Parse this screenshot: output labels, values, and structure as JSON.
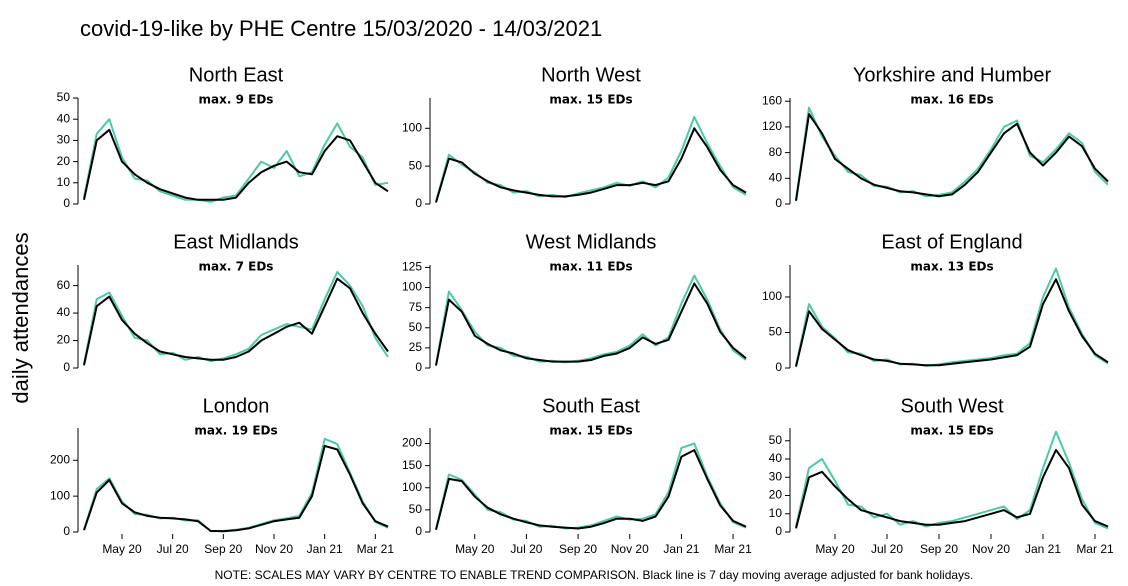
{
  "title": "covid-19-like by PHE Centre 15/03/2020 - 14/03/2021",
  "y_label": "daily attendances",
  "note": "NOTE: SCALES MAY VARY BY CENTRE TO ENABLE TREND COMPARISON. Black line is 7 day moving average adjusted for bank holidays.",
  "chart_data": [
    {
      "type": "line",
      "title": "North East",
      "subtitle": "max. 9 EDs",
      "categories": [
        null,
        null,
        null,
        null,
        null,
        null,
        null,
        null,
        null,
        null,
        null,
        null,
        null,
        null,
        null,
        null,
        null,
        null,
        null,
        null,
        null,
        null,
        null,
        null,
        null
      ],
      "ylim": [
        0,
        50
      ],
      "yticks": [
        0,
        10,
        20,
        30,
        40,
        50
      ],
      "series": [
        {
          "color": "#4cc9a7",
          "values": [
            3,
            33,
            40,
            22,
            12,
            11,
            6,
            4,
            2,
            2,
            1,
            3,
            4,
            12,
            20,
            17,
            25,
            13,
            15,
            28,
            38,
            27,
            22,
            9,
            10
          ]
        },
        {
          "color": "#000000",
          "values": [
            2,
            30,
            35,
            20,
            14,
            10,
            7,
            5,
            3,
            2,
            2,
            2,
            3,
            10,
            15,
            18,
            20,
            15,
            14,
            25,
            32,
            30,
            20,
            10,
            6
          ]
        }
      ]
    },
    {
      "type": "line",
      "title": "North West",
      "subtitle": "max. 15 EDs",
      "categories": [
        null,
        null,
        null,
        null,
        null,
        null,
        null,
        null,
        null,
        null,
        null,
        null,
        null,
        null,
        null,
        null,
        null,
        null,
        null,
        null,
        null,
        null,
        null,
        null,
        null
      ],
      "ylim": [
        0,
        140
      ],
      "yticks": [
        0,
        50,
        100
      ],
      "series": [
        {
          "color": "#4cc9a7",
          "values": [
            3,
            65,
            52,
            42,
            28,
            25,
            15,
            17,
            10,
            12,
            9,
            14,
            18,
            22,
            28,
            24,
            30,
            22,
            35,
            70,
            115,
            80,
            50,
            22,
            12
          ]
        },
        {
          "color": "#000000",
          "values": [
            2,
            60,
            55,
            40,
            30,
            22,
            18,
            15,
            12,
            10,
            10,
            12,
            15,
            20,
            25,
            25,
            28,
            25,
            30,
            60,
            100,
            75,
            45,
            25,
            15
          ]
        }
      ]
    },
    {
      "type": "line",
      "title": "Yorkshire and Humber",
      "subtitle": "max. 16 EDs",
      "categories": [
        null,
        null,
        null,
        null,
        null,
        null,
        null,
        null,
        null,
        null,
        null,
        null,
        null,
        null,
        null,
        null,
        null,
        null,
        null,
        null,
        null,
        null,
        null,
        null,
        null
      ],
      "ylim": [
        0,
        165
      ],
      "yticks": [
        0,
        40,
        80,
        120,
        160
      ],
      "series": [
        {
          "color": "#4cc9a7",
          "values": [
            6,
            150,
            105,
            75,
            50,
            45,
            28,
            27,
            18,
            20,
            12,
            14,
            18,
            35,
            55,
            85,
            120,
            130,
            75,
            65,
            85,
            110,
            95,
            50,
            30
          ]
        },
        {
          "color": "#000000",
          "values": [
            5,
            140,
            110,
            70,
            55,
            40,
            30,
            25,
            20,
            18,
            15,
            12,
            15,
            30,
            50,
            80,
            110,
            125,
            80,
            60,
            80,
            105,
            90,
            55,
            35
          ]
        }
      ]
    },
    {
      "type": "line",
      "title": "East Midlands",
      "subtitle": "max. 7 EDs",
      "categories": [
        null,
        null,
        null,
        null,
        null,
        null,
        null,
        null,
        null,
        null,
        null,
        null,
        null,
        null,
        null,
        null,
        null,
        null,
        null,
        null,
        null,
        null,
        null,
        null,
        null
      ],
      "ylim": [
        0,
        75
      ],
      "yticks": [
        0,
        20,
        40,
        60
      ],
      "series": [
        {
          "color": "#4cc9a7",
          "values": [
            3,
            50,
            55,
            38,
            22,
            20,
            10,
            11,
            6,
            8,
            5,
            7,
            10,
            14,
            24,
            28,
            32,
            30,
            28,
            50,
            70,
            60,
            45,
            22,
            8
          ]
        },
        {
          "color": "#000000",
          "values": [
            2,
            45,
            52,
            35,
            25,
            18,
            12,
            10,
            8,
            7,
            6,
            6,
            8,
            12,
            20,
            25,
            30,
            33,
            25,
            45,
            65,
            58,
            40,
            25,
            12
          ]
        }
      ]
    },
    {
      "type": "line",
      "title": "West Midlands",
      "subtitle": "max. 11 EDs",
      "categories": [
        null,
        null,
        null,
        null,
        null,
        null,
        null,
        null,
        null,
        null,
        null,
        null,
        null,
        null,
        null,
        null,
        null,
        null,
        null,
        null,
        null,
        null,
        null,
        null,
        null
      ],
      "ylim": [
        0,
        128
      ],
      "yticks": [
        0,
        25,
        50,
        75,
        100,
        125
      ],
      "series": [
        {
          "color": "#4cc9a7",
          "values": [
            4,
            95,
            72,
            45,
            28,
            25,
            15,
            14,
            8,
            9,
            7,
            9,
            12,
            17,
            20,
            28,
            42,
            28,
            38,
            80,
            115,
            85,
            48,
            22,
            10
          ]
        },
        {
          "color": "#000000",
          "values": [
            3,
            85,
            70,
            40,
            30,
            22,
            18,
            12,
            10,
            8,
            8,
            8,
            10,
            15,
            18,
            25,
            38,
            30,
            35,
            70,
            105,
            80,
            45,
            25,
            12
          ]
        }
      ]
    },
    {
      "type": "line",
      "title": "East of England",
      "subtitle": "max. 13 EDs",
      "categories": [
        null,
        null,
        null,
        null,
        null,
        null,
        null,
        null,
        null,
        null,
        null,
        null,
        null,
        null,
        null,
        null,
        null,
        null,
        null,
        null,
        null,
        null,
        null,
        null,
        null
      ],
      "ylim": [
        0,
        145
      ],
      "yticks": [
        0,
        50,
        100
      ],
      "series": [
        {
          "color": "#4cc9a7",
          "values": [
            3,
            90,
            58,
            42,
            22,
            20,
            10,
            12,
            5,
            6,
            3,
            5,
            8,
            10,
            12,
            14,
            18,
            20,
            35,
            100,
            140,
            85,
            48,
            18,
            6
          ]
        },
        {
          "color": "#000000",
          "values": [
            2,
            80,
            55,
            40,
            25,
            18,
            12,
            10,
            6,
            5,
            4,
            4,
            6,
            8,
            10,
            12,
            15,
            18,
            30,
            90,
            125,
            80,
            45,
            20,
            8
          ]
        }
      ]
    },
    {
      "type": "line",
      "title": "London",
      "subtitle": "max. 19 EDs",
      "categories": [
        null,
        null,
        null,
        "May 20",
        null,
        null,
        null,
        "Jul 20",
        null,
        null,
        null,
        "Sep 20",
        null,
        null,
        null,
        "Nov 20",
        null,
        null,
        null,
        "Jan 21",
        null,
        null,
        null,
        "Mar 21",
        null
      ],
      "ylim": [
        0,
        290
      ],
      "yticks": [
        0,
        100,
        200
      ],
      "series": [
        {
          "color": "#4cc9a7",
          "values": [
            6,
            120,
            150,
            85,
            50,
            48,
            38,
            40,
            32,
            33,
            2,
            3,
            6,
            12,
            22,
            33,
            38,
            45,
            110,
            260,
            245,
            165,
            85,
            28,
            12
          ]
        },
        {
          "color": "#000000",
          "values": [
            5,
            110,
            145,
            80,
            55,
            45,
            40,
            38,
            35,
            30,
            3,
            2,
            5,
            10,
            20,
            30,
            35,
            40,
            100,
            240,
            230,
            160,
            80,
            30,
            15
          ]
        }
      ]
    },
    {
      "type": "line",
      "title": "South East",
      "subtitle": "max. 15 EDs",
      "categories": [
        null,
        null,
        null,
        "May 20",
        null,
        null,
        null,
        "Jul 20",
        null,
        null,
        null,
        "Sep 20",
        null,
        null,
        null,
        "Nov 20",
        null,
        null,
        null,
        "Jan 21",
        null,
        null,
        null,
        "Mar 21",
        null
      ],
      "ylim": [
        0,
        235
      ],
      "yticks": [
        0,
        50,
        100,
        150,
        200
      ],
      "series": [
        {
          "color": "#4cc9a7",
          "values": [
            6,
            130,
            118,
            85,
            50,
            45,
            28,
            25,
            12,
            14,
            8,
            10,
            15,
            25,
            35,
            28,
            30,
            40,
            90,
            190,
            200,
            125,
            65,
            22,
            10
          ]
        },
        {
          "color": "#000000",
          "values": [
            5,
            120,
            115,
            80,
            55,
            40,
            30,
            22,
            15,
            12,
            10,
            8,
            12,
            20,
            30,
            30,
            25,
            35,
            80,
            170,
            185,
            120,
            60,
            25,
            12
          ]
        }
      ]
    },
    {
      "type": "line",
      "title": "South West",
      "subtitle": "max. 15 EDs",
      "categories": [
        null,
        null,
        null,
        "May 20",
        null,
        null,
        null,
        "Jul 20",
        null,
        null,
        null,
        "Sep 20",
        null,
        null,
        null,
        "Nov 20",
        null,
        null,
        null,
        "Jan 21",
        null,
        null,
        null,
        "Mar 21",
        null
      ],
      "ylim": [
        0,
        57
      ],
      "yticks": [
        0,
        10,
        20,
        30,
        40,
        50
      ],
      "series": [
        {
          "color": "#4cc9a7",
          "values": [
            3,
            35,
            40,
            28,
            15,
            14,
            8,
            10,
            4,
            6,
            3,
            5,
            6,
            8,
            10,
            12,
            14,
            7,
            12,
            35,
            55,
            38,
            18,
            5,
            2
          ]
        },
        {
          "color": "#000000",
          "values": [
            2,
            30,
            33,
            25,
            18,
            12,
            10,
            8,
            6,
            5,
            4,
            4,
            5,
            6,
            8,
            10,
            12,
            8,
            10,
            30,
            45,
            35,
            15,
            6,
            3
          ]
        }
      ]
    }
  ]
}
